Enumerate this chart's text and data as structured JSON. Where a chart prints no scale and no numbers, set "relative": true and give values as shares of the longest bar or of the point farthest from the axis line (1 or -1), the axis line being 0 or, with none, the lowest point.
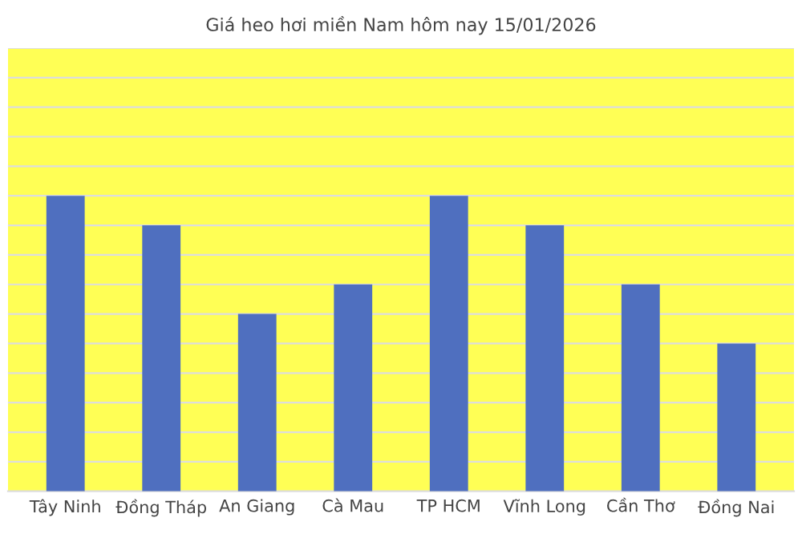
{
  "chart_data": {
    "type": "bar",
    "title": "Giá heo hơi miền Nam hôm nay 15/01/2026",
    "categories": [
      "Tây Ninh",
      "Đồng Tháp",
      "An Giang",
      "Cà Mau",
      "TP HCM",
      "Vĩnh Long",
      "Cần Thơ",
      "Đồng Nai"
    ],
    "values": [
      1,
      0.9,
      0.6,
      0.7,
      1,
      0.9,
      0.7,
      0.5
    ],
    "color": "#4f6fbf",
    "relative": true,
    "grid": "y"
  }
}
